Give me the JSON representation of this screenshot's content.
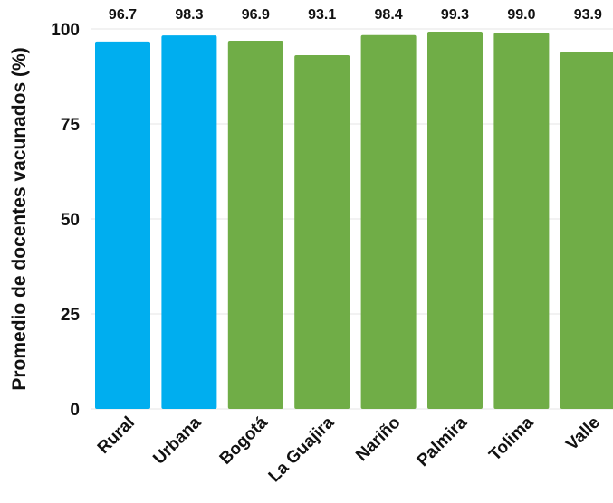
{
  "chart_data": {
    "type": "bar",
    "title": "",
    "xlabel": "",
    "ylabel": "Promedio de docentes vacunados (%)",
    "ylim": [
      0,
      100
    ],
    "yticks": [
      0,
      25,
      50,
      75,
      100
    ],
    "grid": true,
    "categories": [
      "Rural",
      "Urbana",
      "Bogotá",
      "La Guajira",
      "Nariño",
      "Palmira",
      "Tolima",
      "Valle"
    ],
    "values": [
      96.7,
      98.3,
      96.9,
      93.1,
      98.4,
      99.3,
      99.0,
      93.9
    ],
    "data_labels": [
      "96.7",
      "98.3",
      "96.9",
      "93.1",
      "98.4",
      "99.3",
      "99.0",
      "93.9"
    ],
    "bar_colors": [
      "#00aeef",
      "#00aeef",
      "#70ad47",
      "#70ad47",
      "#70ad47",
      "#70ad47",
      "#70ad47",
      "#70ad47"
    ]
  }
}
